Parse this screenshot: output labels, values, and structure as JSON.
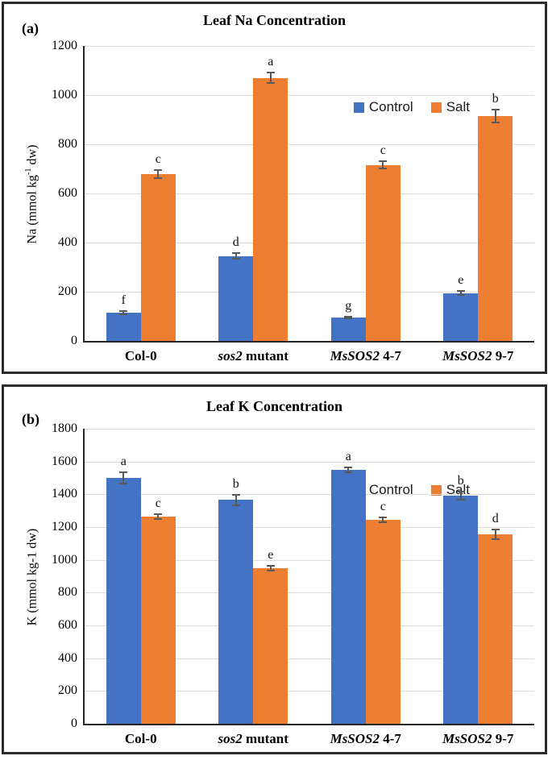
{
  "colors": {
    "control": "#4472C4",
    "salt": "#ED7D31",
    "error_bar": "#595959",
    "gridline": "#DCDCDC",
    "axis": "#262626"
  },
  "chart_data": [
    {
      "type": "bar",
      "panel_label": "(a)",
      "title": "Leaf Na Concentration",
      "ylabel": {
        "before": "Na (mmol kg",
        "sup": "-1",
        "after": " dw)"
      },
      "ylim": [
        0,
        1200
      ],
      "ytick_step": 200,
      "grid": true,
      "legend_position": "top-right",
      "categories": [
        {
          "italic": "",
          "plain": "Col-0"
        },
        {
          "italic": "sos2",
          "plain": " mutant"
        },
        {
          "italic": "MsSOS2",
          "plain": " 4-7"
        },
        {
          "italic": "MsSOS2",
          "plain": " 9-7"
        }
      ],
      "series": [
        {
          "name": "Control",
          "color": "#4472C4",
          "values": [
            115,
            345,
            95,
            195
          ],
          "errors": [
            10,
            15,
            8,
            10
          ],
          "letters": [
            "f",
            "d",
            "g",
            "e"
          ]
        },
        {
          "name": "Salt",
          "color": "#ED7D31",
          "values": [
            680,
            1070,
            715,
            915
          ],
          "errors": [
            20,
            25,
            18,
            30
          ],
          "letters": [
            "c",
            "a",
            "c",
            "b"
          ]
        }
      ]
    },
    {
      "type": "bar",
      "panel_label": "(b)",
      "title": "Leaf K Concentration",
      "ylabel": {
        "before": "K (mmol kg-1 dw)",
        "sup": "",
        "after": ""
      },
      "ylim": [
        0,
        1800
      ],
      "ytick_step": 200,
      "grid": true,
      "legend_position": "top-right",
      "categories": [
        {
          "italic": "",
          "plain": "Col-0"
        },
        {
          "italic": "sos2",
          "plain": " mutant"
        },
        {
          "italic": "MsSOS2",
          "plain": " 4-7"
        },
        {
          "italic": "MsSOS2",
          "plain": " 9-7"
        }
      ],
      "series": [
        {
          "name": "Control",
          "color": "#4472C4",
          "values": [
            1500,
            1365,
            1550,
            1390
          ],
          "errors": [
            40,
            35,
            20,
            30
          ],
          "letters": [
            "a",
            "b",
            "a",
            "b"
          ]
        },
        {
          "name": "Salt",
          "color": "#ED7D31",
          "values": [
            1265,
            950,
            1245,
            1155
          ],
          "errors": [
            20,
            20,
            20,
            35
          ],
          "letters": [
            "c",
            "e",
            "c",
            "d"
          ]
        }
      ]
    }
  ]
}
